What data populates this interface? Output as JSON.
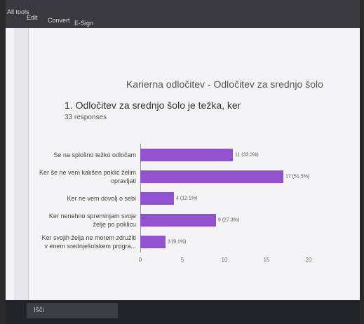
{
  "ui": {
    "menu": [
      "All tools",
      "Edit",
      "Convert",
      "E-Sign"
    ],
    "search": "Išči"
  },
  "chart_data": {
    "type": "bar",
    "orientation": "horizontal",
    "title": "Karierna odločitev - Odločitev za srednjo šolo",
    "question": "1. Odločitev za srednjo šolo je težka, ker",
    "subtitle": "33 responses",
    "categories": [
      "Se na splošno težko odločam",
      "Ker še ne vem kakšen poklic želim opravljati",
      "Ker ne vem dovolj o sebi",
      "Ker nenehno spreminjam svoje želje po poklicu",
      "Ker svojih želja ne morem združiti v enem srednješolskem progra..."
    ],
    "values": [
      11,
      17,
      4,
      9,
      3
    ],
    "value_labels": [
      "11 (33.3%)",
      "17 (51.5%)",
      "4 (12.1%)",
      "9 (27.3%)",
      "3 (9.1%)"
    ],
    "color": "#9251cf",
    "xlim": [
      0,
      20
    ],
    "xticks": [
      0,
      5,
      10,
      15,
      20
    ],
    "grid": false
  }
}
